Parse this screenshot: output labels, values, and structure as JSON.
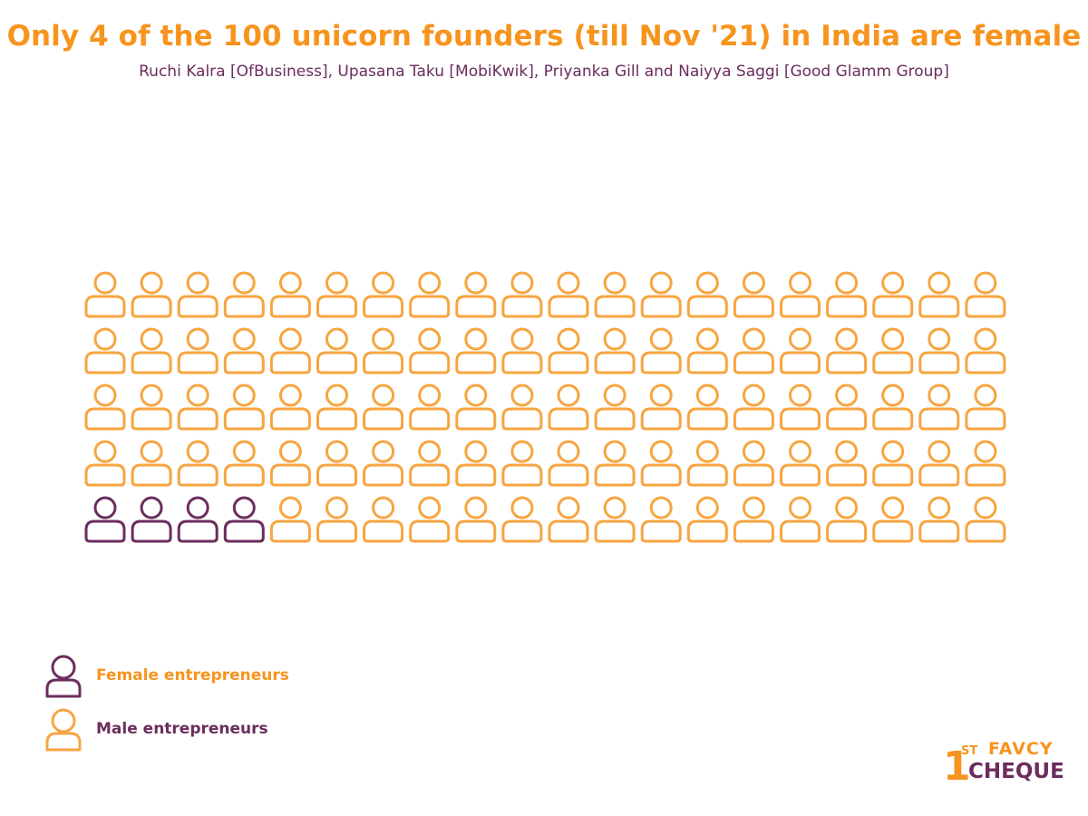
{
  "chart_data": {
    "type": "pictogram",
    "title": "Only 4 of the 100 unicorn founders (till Nov '21) in India are female",
    "subtitle": "Ruchi Kalra [OfBusiness], Upasana Taku [MobiKwik], Priyanka Gill and Naiyya Saggi [Good Glamm Group]",
    "total": 100,
    "series": [
      {
        "name": "Female entrepreneurs",
        "value": 4,
        "color": "#6b2d5c"
      },
      {
        "name": "Male entrepreneurs",
        "value": 96,
        "color": "#f7a541"
      }
    ],
    "legend": {
      "position": "bottom-left",
      "items": [
        {
          "label": "Female entrepreneurs",
          "icon": "person-outline-icon",
          "icon_color": "#6b2d5c",
          "label_color": "#f7941d"
        },
        {
          "label": "Male entrepreneurs",
          "icon": "person-outline-icon",
          "icon_color": "#f7a541",
          "label_color": "#6b2d5c"
        }
      ]
    }
  },
  "logo": {
    "number": "1",
    "superscript": "ST",
    "top_text": "FAVCY",
    "bottom_text": "CHEQUE"
  },
  "colors": {
    "accent": "#f7941d",
    "female": "#6b2d5c",
    "male": "#f7a541"
  }
}
